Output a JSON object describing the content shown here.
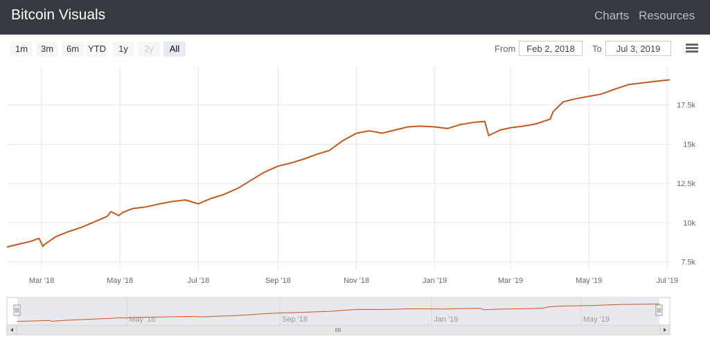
{
  "header": {
    "brand": "Bitcoin Visuals",
    "nav": [
      {
        "label": "Charts"
      },
      {
        "label": "Resources"
      }
    ]
  },
  "range_selector": {
    "buttons": [
      {
        "label": "1m",
        "state": "normal"
      },
      {
        "label": "3m",
        "state": "normal"
      },
      {
        "label": "6m",
        "state": "normal"
      },
      {
        "label": "YTD",
        "state": "normal"
      },
      {
        "label": "1y",
        "state": "normal"
      },
      {
        "label": "2y",
        "state": "disabled"
      },
      {
        "label": "All",
        "state": "active"
      }
    ],
    "from_label": "From",
    "from_value": "Feb 2, 2018",
    "to_label": "To",
    "to_value": "Jul 3, 2019"
  },
  "colors": {
    "series": "#c8561a",
    "navigator_fill": "#e8e8ef",
    "grid": "#e6e6e6"
  },
  "icons": {
    "menu": "hamburger-menu-icon",
    "scroll_left": "arrow-left-icon",
    "scroll_right": "arrow-right-icon",
    "scroll_grip": "grip-icon"
  },
  "chart_data": {
    "type": "line",
    "x_ticks": [
      "Mar '18",
      "May '18",
      "Jul '18",
      "Sep '18",
      "Nov '18",
      "Jan '19",
      "Mar '19",
      "May '19",
      "Jul '19"
    ],
    "y_ticks": [
      "7.5k",
      "10k",
      "12.5k",
      "15k",
      "17.5k"
    ],
    "y_tick_values": [
      7500,
      10000,
      12500,
      15000,
      17500
    ],
    "ylim": [
      7000,
      20000
    ],
    "xlim": [
      "2018-02-02",
      "2019-07-03"
    ],
    "navigator_ticks": [
      "May '18",
      "Sep '18",
      "Jan '19",
      "May '19"
    ],
    "grid": true,
    "series": [
      {
        "x": [
          "2018-02-02",
          "2018-02-12",
          "2018-02-20",
          "2018-02-27",
          "2018-03-02",
          "2018-03-03",
          "2018-03-12",
          "2018-03-21",
          "2018-04-01",
          "2018-04-11",
          "2018-04-21",
          "2018-04-24",
          "2018-04-30",
          "2018-05-03",
          "2018-05-11",
          "2018-05-21",
          "2018-06-01",
          "2018-06-11",
          "2018-06-21",
          "2018-07-01",
          "2018-07-11",
          "2018-07-21",
          "2018-08-01",
          "2018-08-11",
          "2018-08-21",
          "2018-09-01",
          "2018-09-11",
          "2018-09-21",
          "2018-10-01",
          "2018-10-11",
          "2018-10-21",
          "2018-11-01",
          "2018-11-11",
          "2018-11-21",
          "2018-12-01",
          "2018-12-11",
          "2018-12-21",
          "2019-01-01",
          "2019-01-11",
          "2019-01-21",
          "2019-02-01",
          "2019-02-09",
          "2019-02-12",
          "2019-02-21",
          "2019-03-01",
          "2019-03-11",
          "2019-03-21",
          "2019-04-01",
          "2019-04-03",
          "2019-04-11",
          "2019-04-21",
          "2019-05-01",
          "2019-05-11",
          "2019-05-21",
          "2019-06-01",
          "2019-06-11",
          "2019-06-21",
          "2019-07-03"
        ],
        "y": [
          8450,
          8650,
          8800,
          9000,
          8500,
          8600,
          9100,
          9400,
          9700,
          10050,
          10400,
          10700,
          10450,
          10650,
          10900,
          11000,
          11200,
          11350,
          11450,
          11200,
          11550,
          11800,
          12200,
          12700,
          13200,
          13600,
          13800,
          14050,
          14350,
          14600,
          15200,
          15700,
          15850,
          15700,
          15900,
          16100,
          16150,
          16100,
          16000,
          16250,
          16400,
          16450,
          15550,
          15900,
          16050,
          16150,
          16300,
          16600,
          17050,
          17700,
          17900,
          18050,
          18200,
          18500,
          18800,
          18900,
          19000,
          19100
        ]
      }
    ]
  }
}
